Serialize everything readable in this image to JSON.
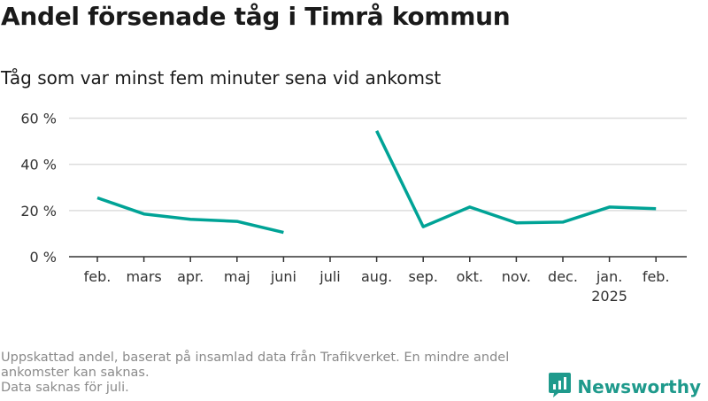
{
  "title": "Andel försenade tåg i Timrå kommun",
  "subtitle": "Tåg som var minst fem minuter sena vid ankomst",
  "footer": {
    "note1": "Uppskattad andel, baserat på insamlad data från Trafikverket. En mindre andel ankomster kan saknas.",
    "note2": "Data saknas för juli."
  },
  "brand": {
    "name": "Newsworthy",
    "icon": "bar-chart-speech-bubble-icon"
  },
  "colors": {
    "line": "#00a396",
    "grid": "#dddddd",
    "axis": "#333333",
    "brand": "#1f9a8c"
  },
  "chart_data": {
    "type": "line",
    "categories": [
      "feb.",
      "mars",
      "apr.",
      "maj",
      "juni",
      "juli",
      "aug.",
      "sep.",
      "okt.",
      "nov.",
      "dec.",
      "jan.",
      "feb."
    ],
    "category_sublabels": [
      "",
      "",
      "",
      "",
      "",
      "",
      "",
      "",
      "",
      "",
      "",
      "2025",
      ""
    ],
    "series": [
      {
        "values": [
          25.5,
          18.5,
          16.2,
          15.3,
          10.5,
          null,
          54.5,
          13,
          21.5,
          14.7,
          15,
          21.5,
          20.8
        ]
      }
    ],
    "yticks": [
      0,
      20,
      40,
      60
    ],
    "ytick_labels": [
      "0 %",
      "20 %",
      "40 %",
      "60 %"
    ],
    "ylim": [
      0,
      60
    ],
    "grid": true
  }
}
